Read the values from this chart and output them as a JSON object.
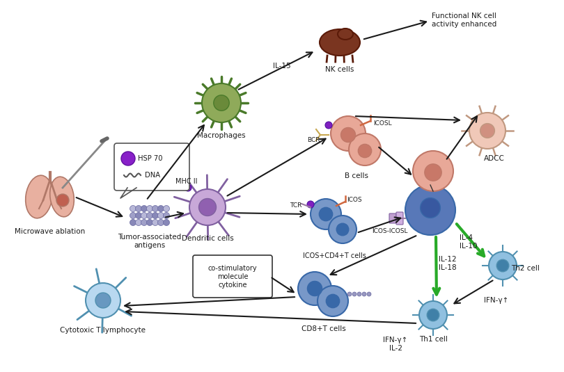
{
  "bg_color": "#ffffff",
  "figsize": [
    8.1,
    5.35
  ],
  "dpi": 100,
  "labels": {
    "microwave_ablation": "Microwave ablation",
    "tumor_antigens": "Tumor-associated\nantigens",
    "hsp70": "HSP 70",
    "dna": "DNA",
    "macrophages": "Macrophages",
    "il15": "IL-15",
    "nk_cells": "NK cells",
    "functional_nk": "Functional NK cell\nactivity enhanced",
    "mhc2": "MHC II",
    "dendritic": "Dendritic cells",
    "bcr": "BCR",
    "icosl_b": "ICOSL",
    "b_cells": "B cells",
    "adcc": "ADCC",
    "tcr": "TCR",
    "icos": "ICOS",
    "icos_icosl": "ICOS-ICOSL",
    "icos_cd4": "ICOS+CD4+T cells",
    "costim": "co-stimulatory\nmolecule\ncytokine",
    "cd8": "CD8+T cells",
    "cytotoxic": "Cytotoxic T lymphocyte",
    "il4_il10": "IL-4\nIL-10",
    "il12_il18": "IL-12\nIL-18",
    "th2": "Th2 cell",
    "ifng_th2": "IFN-γ↑",
    "th1": "Th1 cell",
    "ifng_il2": "IFN-γ↑\nIL-2"
  },
  "colors": {
    "macro_fill": "#8faa5a",
    "macro_stroke": "#4a7a2a",
    "macro_nuc": "#6a8a3a",
    "nk_fill": "#7a3520",
    "nk_stroke": "#5a1a08",
    "b_cell_fill": "#e8a898",
    "b_cell_stroke": "#c07868",
    "b_cell_nuc": "#c87868",
    "dendritic_fill": "#c8a8d8",
    "dendritic_stroke": "#8060a0",
    "dendritic_nuc": "#9060b0",
    "t_cell_fill": "#7898c8",
    "t_cell_stroke": "#3868a8",
    "t_cell_nuc": "#3868a8",
    "large_t_fill": "#5878b8",
    "large_t_nuc": "#3858a0",
    "adcc_fill": "#f0c8b8",
    "adcc_stroke": "#c09880",
    "adcc_nuc": "#d09080",
    "th_fill": "#90c0e0",
    "th_stroke": "#5090b0",
    "th_nuc": "#4080a8",
    "cyto_fill": "#b8d8f0",
    "cyto_stroke": "#5090b0",
    "cyto_nuc": "#6898c0",
    "lung_fill": "#e8b0a0",
    "lung_stroke": "#b07868",
    "arrow_color": "#1a1a1a",
    "green_arrow": "#28aa28",
    "text_color": "#1a1a1a",
    "hsp_purple": "#8820c8",
    "box_fill": "#ffffff",
    "box_stroke": "#333333",
    "purple_dot": "#8020c0"
  }
}
